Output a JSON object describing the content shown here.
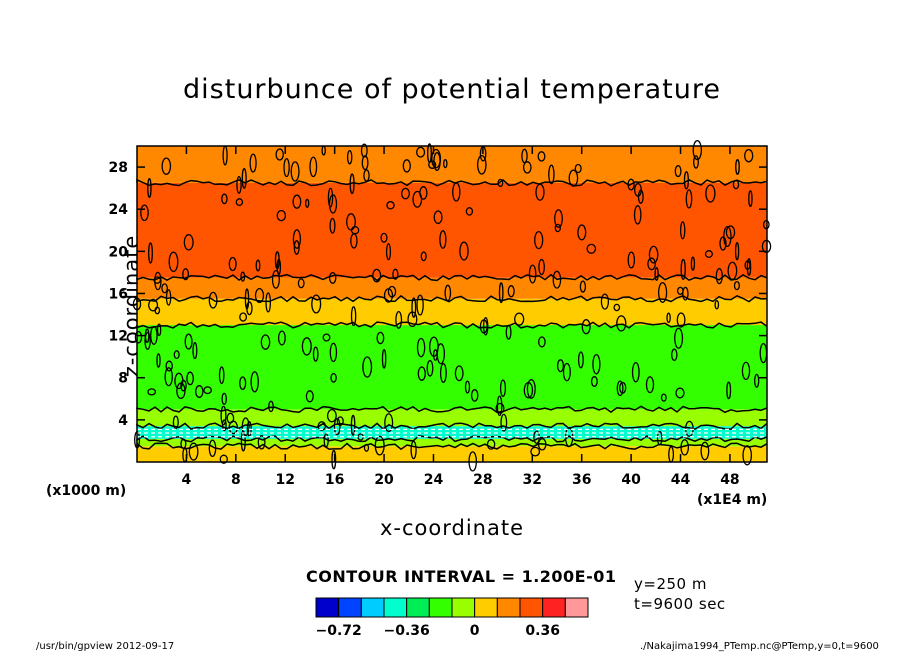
{
  "chart_data": {
    "type": "heatmap",
    "title": "disturbunce of potential temperature",
    "xlabel": "x-coordinate",
    "ylabel": "z-coordinate",
    "x_unit": "(x1E4 m)",
    "z_unit": "(x1000 m)",
    "xlim": [
      0,
      51
    ],
    "ylim": [
      0,
      30
    ],
    "x_ticks": [
      4,
      8,
      12,
      16,
      20,
      24,
      28,
      32,
      36,
      40,
      44,
      48
    ],
    "y_ticks": [
      4,
      8,
      12,
      16,
      20,
      24,
      28
    ],
    "layers": [
      {
        "z_min": 0,
        "z_max": 1.5,
        "value": 0.0
      },
      {
        "z_min": 1.5,
        "z_max": 2.2,
        "value": -0.12
      },
      {
        "z_min": 2.2,
        "z_max": 3.4,
        "value": -0.48
      },
      {
        "z_min": 3.4,
        "z_max": 5,
        "value": -0.12
      },
      {
        "z_min": 5,
        "z_max": 13,
        "value": -0.24
      },
      {
        "z_min": 13,
        "z_max": 15.5,
        "value": 0.0
      },
      {
        "z_min": 15.5,
        "z_max": 17.5,
        "value": 0.12
      },
      {
        "z_min": 17.5,
        "z_max": 26.5,
        "value": 0.24
      },
      {
        "z_min": 26.5,
        "z_max": 30,
        "value": 0.12
      }
    ],
    "contour_interval": "CONTOUR INTERVAL = 1.200E-01",
    "colorbar": {
      "colors": [
        "#0000cc",
        "#0044ff",
        "#00ccff",
        "#00ffcc",
        "#00ee55",
        "#33ff00",
        "#99ff00",
        "#ffcc00",
        "#ff8800",
        "#ff5500",
        "#ff2222",
        "#ff9999"
      ],
      "labels": [
        "−0.72",
        "−0.36",
        "0",
        "0.36"
      ],
      "label_values": [
        -0.72,
        -0.36,
        0,
        0.36
      ],
      "min": -0.84,
      "max": 0.6
    }
  },
  "annotations": {
    "y_position": "y=250 m",
    "time": "t=9600 sec"
  },
  "footer": {
    "left": "/usr/bin/gpview   2012-09-17",
    "right": "./Nakajima1994_PTemp.nc@PTemp,y=0,t=9600"
  }
}
